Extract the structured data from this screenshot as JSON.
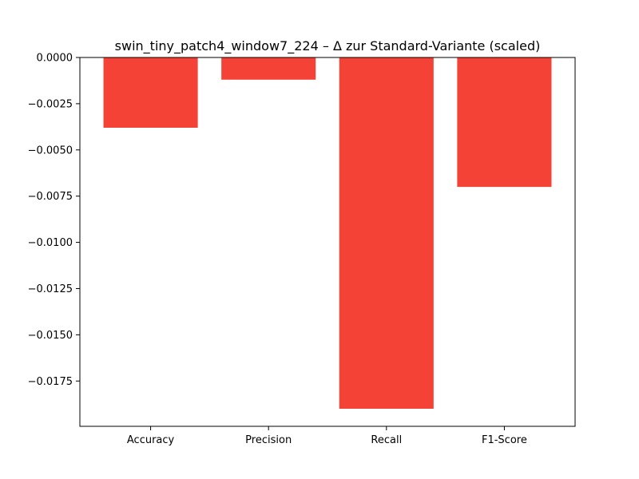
{
  "chart_data": {
    "type": "bar",
    "title": "swin_tiny_patch4_window7_224 – Δ zur Standard-Variante (scaled)",
    "xlabel": "",
    "ylabel": "",
    "categories": [
      "Accuracy",
      "Precision",
      "Recall",
      "F1-Score"
    ],
    "values": [
      -0.0038,
      -0.0012,
      -0.019,
      -0.007
    ],
    "ylim": [
      -0.01995,
      0.0
    ],
    "yticks": [
      0.0,
      -0.0025,
      -0.005,
      -0.0075,
      -0.01,
      -0.0125,
      -0.015,
      -0.0175
    ],
    "ytick_labels": [
      "0.0000",
      "−0.0025",
      "−0.0050",
      "−0.0075",
      "−0.0100",
      "−0.0125",
      "−0.0150",
      "−0.0175"
    ],
    "bar_color": "#f44336",
    "grid": false,
    "legend": "none"
  }
}
